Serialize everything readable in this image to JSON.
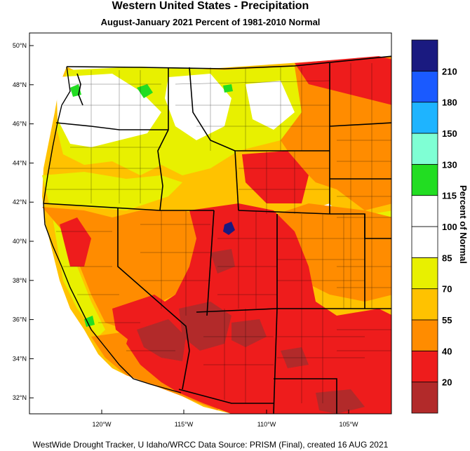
{
  "title": "Western United States - Precipitation",
  "subtitle": "August-January 2021  Percent of 1981-2010 Normal",
  "footer": "WestWide Drought Tracker, U Idaho/WRCC Data Source: PRISM (Final), created 16 AUG 2021",
  "colorbar": {
    "title": "Percent of Normal",
    "labels": [
      "20",
      "40",
      "55",
      "70",
      "85",
      "100",
      "115",
      "130",
      "150",
      "180",
      "210"
    ],
    "colors": [
      "#b22a2a",
      "#ee1c1c",
      "#ff8c00",
      "#ffc200",
      "#e8f000",
      "#ffffff",
      "#ffffff",
      "#22dd22",
      "#7fffd4",
      "#1eb4ff",
      "#1a5aff",
      "#1a1a80"
    ]
  },
  "lat_labels": [
    "50°N",
    "48°N",
    "46°N",
    "44°N",
    "42°N",
    "40°N",
    "38°N",
    "36°N",
    "34°N",
    "32°N"
  ],
  "lon_labels": [
    "120°W",
    "115°W",
    "110°W",
    "105°W"
  ]
}
